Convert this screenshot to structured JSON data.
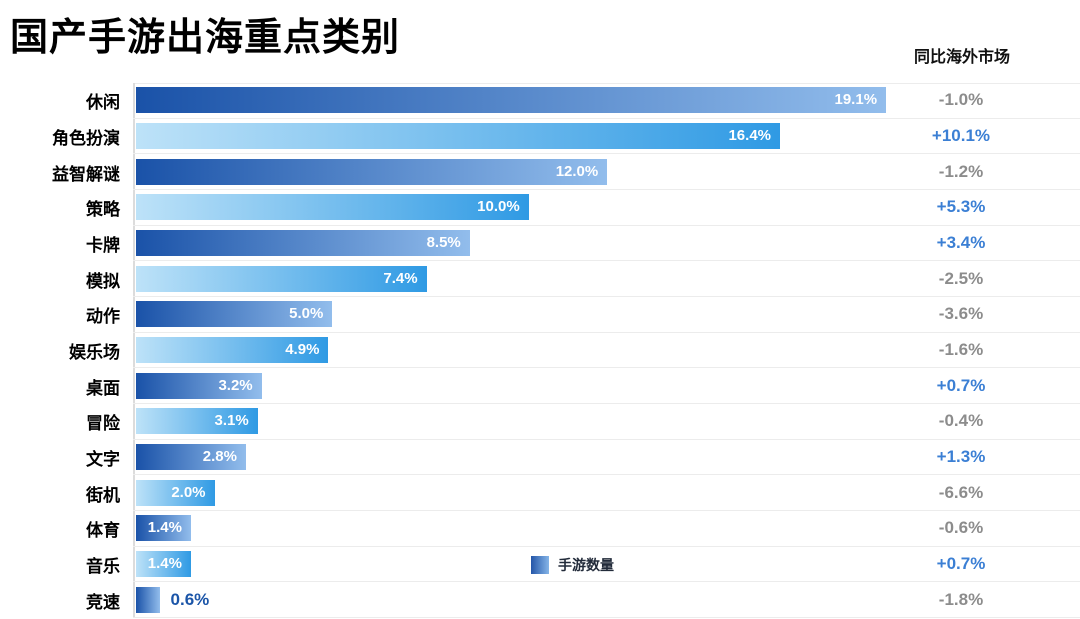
{
  "title": "国产手游出海重点类别",
  "yoy_header": "同比海外市场",
  "legend": {
    "label": "手游数量"
  },
  "colors": {
    "bar_gradient_odd_start": "#1a52a8",
    "bar_gradient_odd_end": "#92bdec",
    "bar_gradient_even_start": "#bde2f8",
    "bar_gradient_even_end": "#2f9ae4",
    "legend_gradient_start": "#2456a8",
    "legend_gradient_end": "#85b5e8",
    "positive_change": "#3b7fd4",
    "negative_change": "#8c8c8c",
    "outside_value_label": "#1b55a8"
  },
  "chart_data": {
    "type": "bar",
    "orientation": "horizontal",
    "title": "国产手游出海重点类别",
    "legend": [
      "手游数量"
    ],
    "legend_position": "bottom-center",
    "grid": "row-dividers",
    "xlim": [
      0,
      20
    ],
    "categories": [
      "休闲",
      "角色扮演",
      "益智解谜",
      "策略",
      "卡牌",
      "模拟",
      "动作",
      "娱乐场",
      "桌面",
      "冒险",
      "文字",
      "街机",
      "体育",
      "音乐",
      "竞速"
    ],
    "series": [
      {
        "name": "手游数量",
        "unit": "%",
        "values": [
          19.1,
          16.4,
          12.0,
          10.0,
          8.5,
          7.4,
          5.0,
          4.9,
          3.2,
          3.1,
          2.8,
          2.0,
          1.4,
          1.4,
          0.6
        ]
      },
      {
        "name": "同比海外市场",
        "unit": "%",
        "values": [
          -1.0,
          10.1,
          -1.2,
          5.3,
          3.4,
          -2.5,
          -3.6,
          -1.6,
          0.7,
          -0.4,
          1.3,
          -6.6,
          -0.6,
          0.7,
          -1.8
        ]
      }
    ]
  }
}
